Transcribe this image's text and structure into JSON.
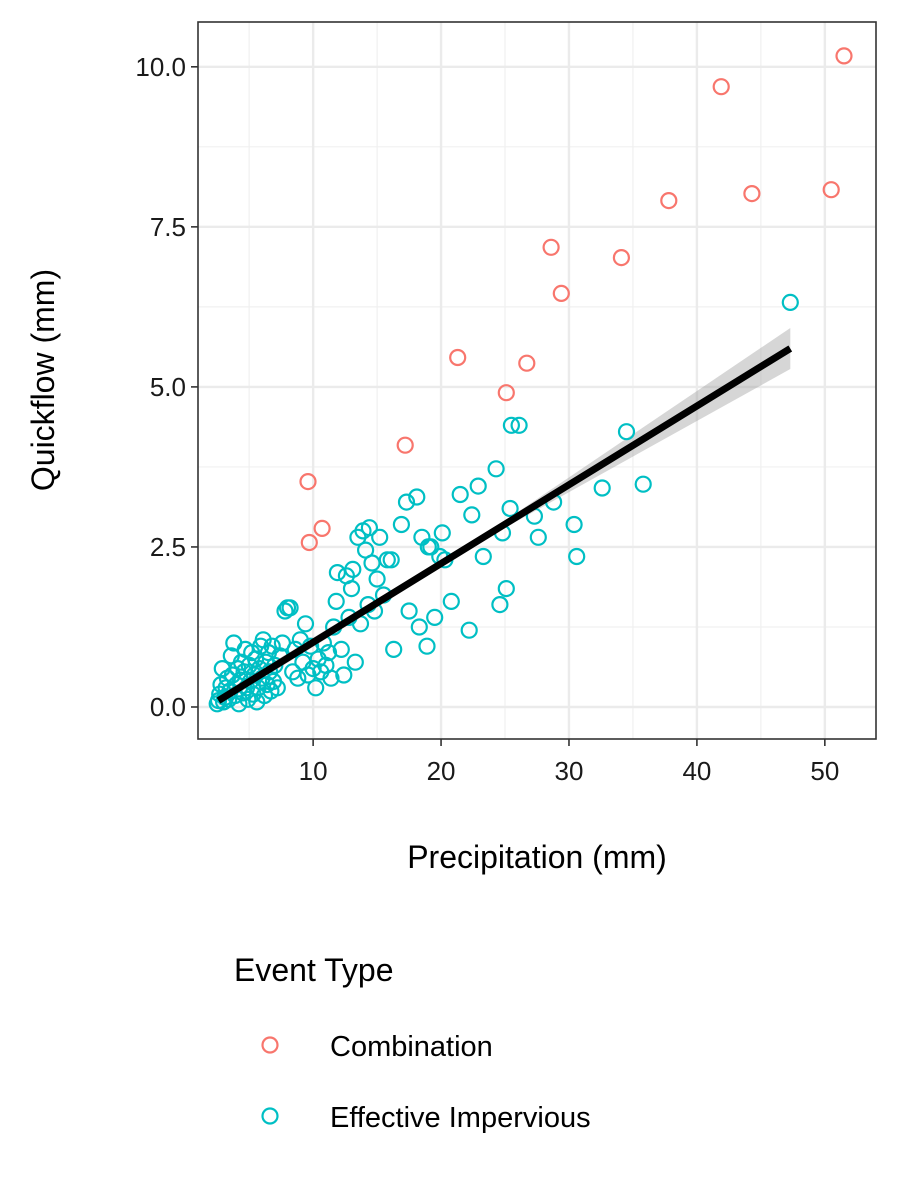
{
  "chart_data": {
    "type": "scatter",
    "xlabel": "Precipitation (mm)",
    "ylabel": "Quickflow (mm)",
    "xlim": [
      1,
      54
    ],
    "ylim": [
      -0.5,
      10.7
    ],
    "x_ticks": [
      10,
      20,
      30,
      40,
      50
    ],
    "x_tick_labels": [
      "10",
      "20",
      "30",
      "40",
      "50"
    ],
    "y_ticks": [
      0,
      2.5,
      5,
      7.5,
      10
    ],
    "y_tick_labels": [
      "0.0",
      "2.5",
      "5.0",
      "7.5",
      "10.0"
    ],
    "grid": true,
    "legend": {
      "title": "Event Type",
      "placement": "bottom",
      "entries": [
        "Combination",
        "Effective Impervious"
      ]
    },
    "series": [
      {
        "name": "Combination",
        "color": "#F8766D",
        "marker": "open-circle",
        "points": [
          [
            9.6,
            3.52
          ],
          [
            9.7,
            2.57
          ],
          [
            10.7,
            2.79
          ],
          [
            17.2,
            4.09
          ],
          [
            21.3,
            5.46
          ],
          [
            25.1,
            4.91
          ],
          [
            26.7,
            5.37
          ],
          [
            28.6,
            7.18
          ],
          [
            29.4,
            6.46
          ],
          [
            34.1,
            7.02
          ],
          [
            37.8,
            7.91
          ],
          [
            41.9,
            9.69
          ],
          [
            44.3,
            8.02
          ],
          [
            50.5,
            8.08
          ],
          [
            51.5,
            10.17
          ]
        ]
      },
      {
        "name": "Effective Impervious",
        "color": "#00BFC4",
        "marker": "open-circle",
        "points": [
          [
            2.5,
            0.05
          ],
          [
            2.6,
            0.1
          ],
          [
            2.7,
            0.2
          ],
          [
            2.8,
            0.35
          ],
          [
            2.9,
            0.6
          ],
          [
            3.0,
            0.08
          ],
          [
            3.1,
            0.15
          ],
          [
            3.2,
            0.3
          ],
          [
            3.3,
            0.45
          ],
          [
            3.4,
            0.12
          ],
          [
            3.5,
            0.25
          ],
          [
            3.6,
            0.8
          ],
          [
            3.7,
            0.5
          ],
          [
            3.8,
            1.0
          ],
          [
            3.9,
            0.18
          ],
          [
            4.0,
            0.35
          ],
          [
            4.1,
            0.6
          ],
          [
            4.2,
            0.05
          ],
          [
            4.3,
            0.42
          ],
          [
            4.4,
            0.7
          ],
          [
            4.5,
            0.22
          ],
          [
            4.6,
            0.55
          ],
          [
            4.7,
            0.9
          ],
          [
            4.8,
            0.3
          ],
          [
            4.9,
            0.12
          ],
          [
            5.0,
            0.65
          ],
          [
            5.1,
            0.4
          ],
          [
            5.2,
            0.85
          ],
          [
            5.3,
            0.2
          ],
          [
            5.4,
            0.5
          ],
          [
            5.5,
            0.75
          ],
          [
            5.6,
            0.08
          ],
          [
            5.7,
            0.3
          ],
          [
            5.8,
            0.6
          ],
          [
            5.9,
            0.95
          ],
          [
            6.0,
            0.45
          ],
          [
            6.1,
            1.05
          ],
          [
            6.2,
            0.18
          ],
          [
            6.3,
            0.7
          ],
          [
            6.4,
            0.35
          ],
          [
            6.5,
            0.85
          ],
          [
            6.6,
            0.55
          ],
          [
            6.7,
            0.25
          ],
          [
            6.8,
            0.95
          ],
          [
            6.9,
            0.4
          ],
          [
            7.0,
            0.65
          ],
          [
            7.2,
            0.3
          ],
          [
            7.4,
            0.8
          ],
          [
            7.6,
            1.0
          ],
          [
            7.8,
            1.5
          ],
          [
            8.0,
            1.55
          ],
          [
            8.2,
            1.55
          ],
          [
            8.4,
            0.55
          ],
          [
            8.6,
            0.9
          ],
          [
            8.8,
            0.45
          ],
          [
            9.0,
            1.05
          ],
          [
            9.2,
            0.7
          ],
          [
            9.4,
            1.3
          ],
          [
            9.6,
            0.5
          ],
          [
            9.8,
            0.95
          ],
          [
            10.0,
            0.6
          ],
          [
            10.2,
            0.3
          ],
          [
            10.4,
            0.75
          ],
          [
            10.6,
            0.55
          ],
          [
            10.8,
            1.0
          ],
          [
            11.0,
            0.65
          ],
          [
            11.2,
            0.85
          ],
          [
            11.4,
            0.45
          ],
          [
            11.6,
            1.25
          ],
          [
            11.8,
            1.65
          ],
          [
            11.9,
            2.1
          ],
          [
            12.2,
            0.9
          ],
          [
            12.4,
            0.5
          ],
          [
            12.6,
            2.05
          ],
          [
            12.8,
            1.4
          ],
          [
            13.0,
            1.85
          ],
          [
            13.1,
            2.15
          ],
          [
            13.3,
            0.7
          ],
          [
            13.5,
            2.65
          ],
          [
            13.7,
            1.3
          ],
          [
            13.9,
            2.75
          ],
          [
            14.1,
            2.45
          ],
          [
            14.3,
            1.6
          ],
          [
            14.4,
            2.8
          ],
          [
            14.6,
            2.25
          ],
          [
            14.8,
            1.5
          ],
          [
            15.0,
            2.0
          ],
          [
            15.2,
            2.65
          ],
          [
            15.5,
            1.75
          ],
          [
            15.8,
            2.3
          ],
          [
            16.1,
            2.3
          ],
          [
            16.3,
            0.9
          ],
          [
            16.9,
            2.85
          ],
          [
            17.3,
            3.2
          ],
          [
            17.5,
            1.5
          ],
          [
            18.1,
            3.28
          ],
          [
            18.3,
            1.25
          ],
          [
            18.5,
            2.65
          ],
          [
            18.9,
            0.95
          ],
          [
            19.0,
            2.5
          ],
          [
            19.2,
            2.5
          ],
          [
            19.5,
            1.4
          ],
          [
            19.9,
            2.35
          ],
          [
            20.1,
            2.72
          ],
          [
            20.3,
            2.3
          ],
          [
            20.8,
            1.65
          ],
          [
            21.5,
            3.32
          ],
          [
            22.2,
            1.2
          ],
          [
            22.4,
            3.0
          ],
          [
            22.9,
            3.45
          ],
          [
            23.3,
            2.35
          ],
          [
            24.3,
            3.72
          ],
          [
            24.6,
            1.6
          ],
          [
            24.8,
            2.72
          ],
          [
            25.1,
            1.85
          ],
          [
            25.4,
            3.1
          ],
          [
            25.5,
            4.4
          ],
          [
            26.1,
            4.4
          ],
          [
            27.3,
            2.98
          ],
          [
            27.6,
            2.65
          ],
          [
            28.8,
            3.2
          ],
          [
            30.4,
            2.85
          ],
          [
            30.6,
            2.35
          ],
          [
            32.6,
            3.42
          ],
          [
            34.5,
            4.3
          ],
          [
            35.8,
            3.48
          ],
          [
            47.3,
            6.32
          ]
        ]
      }
    ],
    "trend_line": {
      "type": "linear",
      "color": "#000000",
      "x": [
        2.6,
        47.3
      ],
      "y": [
        0.1,
        5.6
      ],
      "band_halfwidth": [
        0.08,
        0.32
      ]
    }
  }
}
